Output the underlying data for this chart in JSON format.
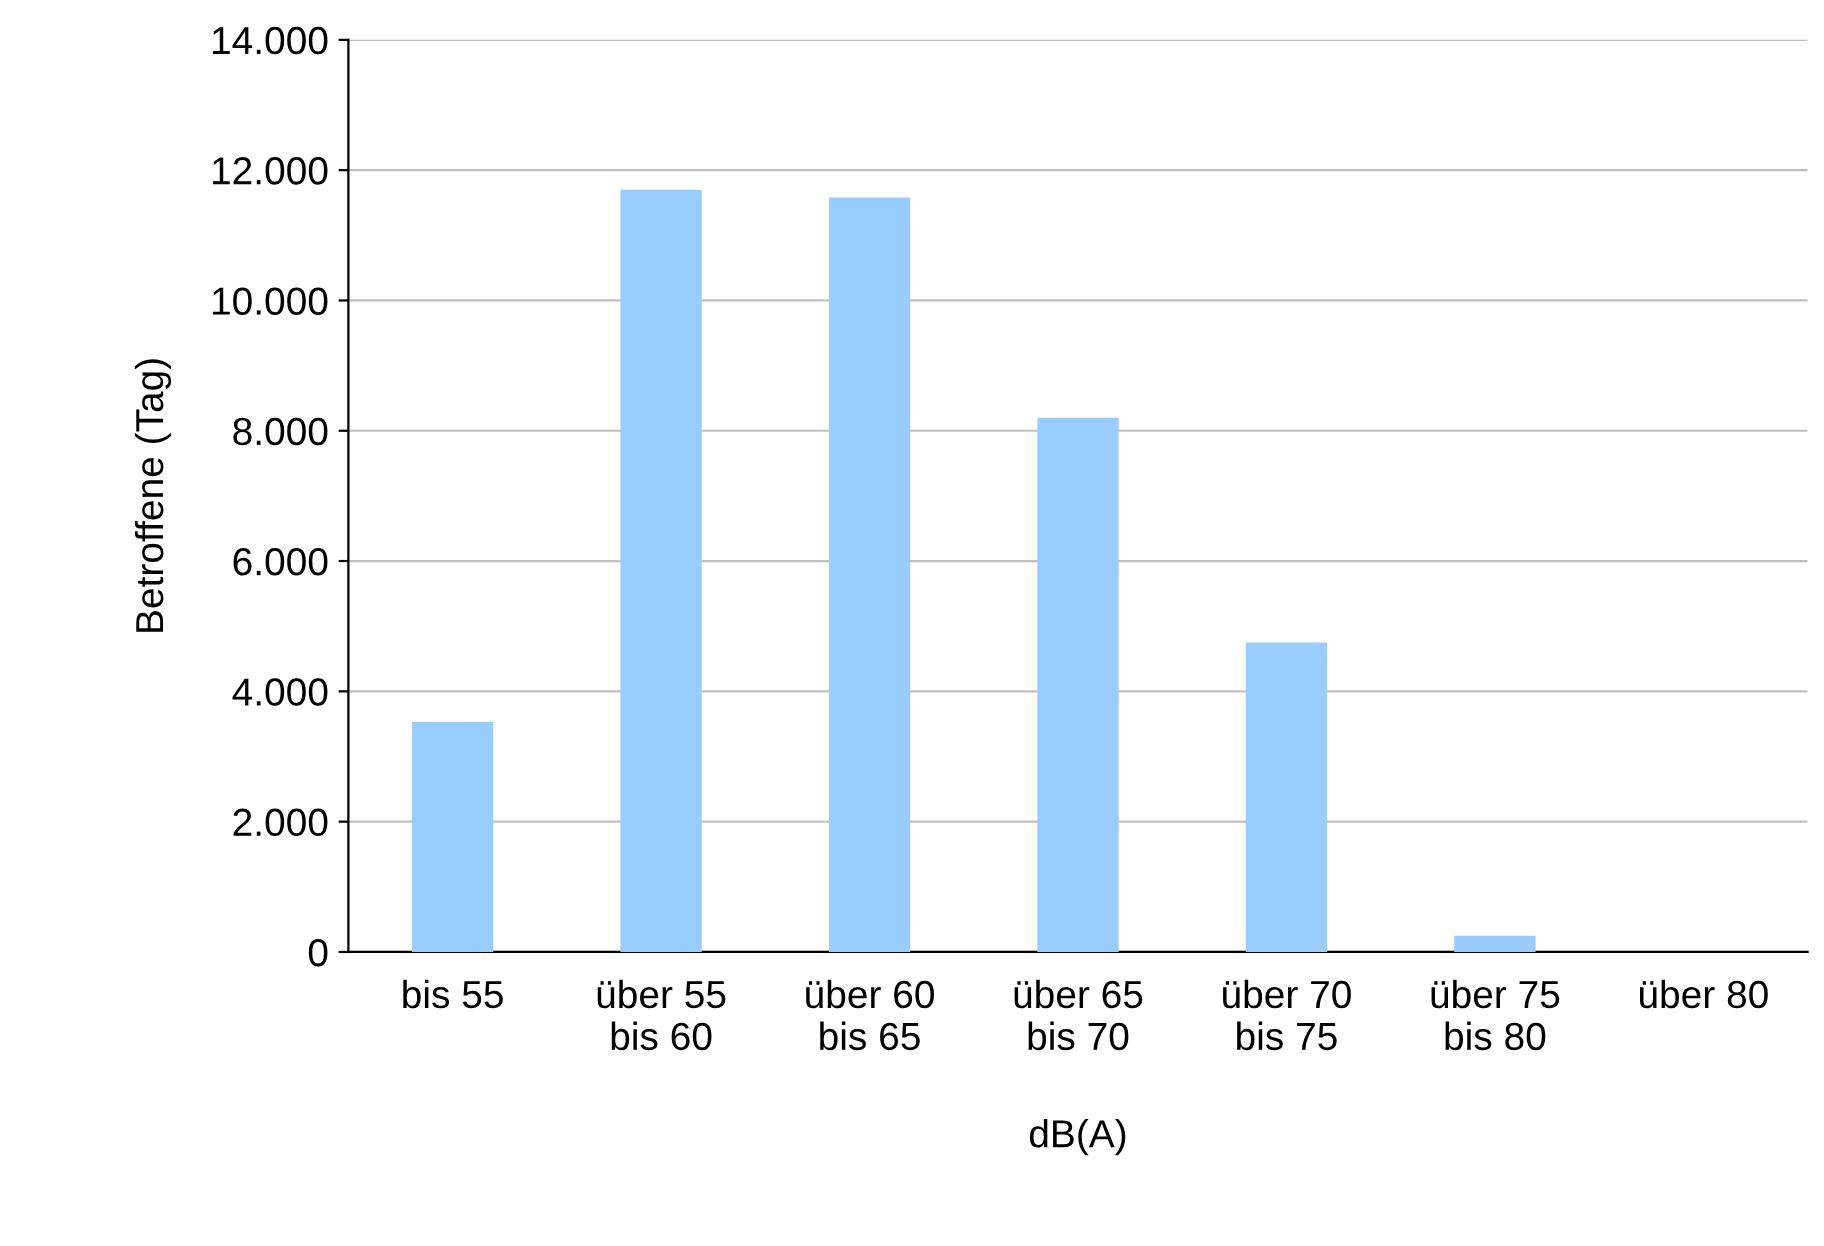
{
  "chart_data": {
    "type": "bar",
    "xlabel": "dB(A)",
    "ylabel": "Betroffene (Tag)",
    "categories": [
      "bis 55",
      "über 55\nbis 60",
      "über 60\nbis 65",
      "über 65\nbis 70",
      "über 70\nbis 75",
      "über 75\nbis 80",
      "über 80"
    ],
    "values": [
      3530,
      11700,
      11580,
      8200,
      4750,
      250,
      0
    ],
    "color": "#99ccff",
    "ylim": [
      0,
      14000
    ],
    "yticks": [
      0,
      {
        "value": 2000,
        "label": "2.000"
      },
      {
        "value": 4000,
        "label": "4.000"
      },
      {
        "value": 6000,
        "label": "6.000"
      },
      {
        "value": 8000,
        "label": "8.000"
      },
      {
        "value": 10000,
        "label": "10.000"
      },
      {
        "value": 12000,
        "label": "12.000"
      },
      {
        "value": 14000,
        "label": "14.000"
      }
    ],
    "grid": "y",
    "legend": false
  }
}
